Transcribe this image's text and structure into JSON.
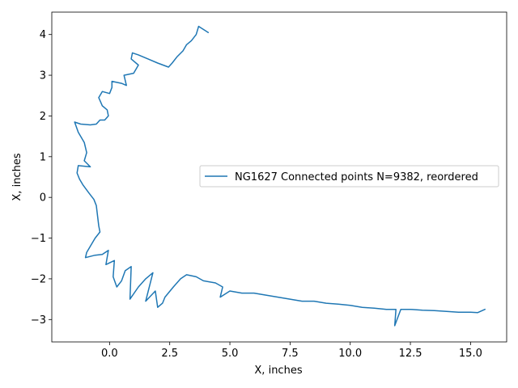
{
  "chart_data": {
    "type": "line",
    "title": "",
    "xlabel": "X, inches",
    "ylabel": "X, inches",
    "xlim": [
      -2.4,
      16.5
    ],
    "ylim": [
      -3.55,
      4.55
    ],
    "x_ticks": [
      0.0,
      2.5,
      5.0,
      7.5,
      10.0,
      12.5,
      15.0
    ],
    "x_tick_labels": [
      "0.0",
      "2.5",
      "5.0",
      "7.5",
      "10.0",
      "12.5",
      "15.0"
    ],
    "y_ticks": [
      -3,
      -2,
      -1,
      0,
      1,
      2,
      3,
      4
    ],
    "y_tick_labels": [
      "−3",
      "−2",
      "−1",
      "0",
      "1",
      "2",
      "3",
      "4"
    ],
    "grid": false,
    "legend_placement": "center-right",
    "series": [
      {
        "name": "NG1627 Connected points N=9382, reordered",
        "color": "#1f77b4",
        "points": [
          [
            4.1,
            4.05
          ],
          [
            3.7,
            4.2
          ],
          [
            3.6,
            4.0
          ],
          [
            3.4,
            3.85
          ],
          [
            3.2,
            3.75
          ],
          [
            3.05,
            3.6
          ],
          [
            2.8,
            3.45
          ],
          [
            2.6,
            3.3
          ],
          [
            2.45,
            3.2
          ],
          [
            2.0,
            3.3
          ],
          [
            1.6,
            3.4
          ],
          [
            1.2,
            3.5
          ],
          [
            0.95,
            3.55
          ],
          [
            0.9,
            3.4
          ],
          [
            1.2,
            3.25
          ],
          [
            1.0,
            3.05
          ],
          [
            0.6,
            3.0
          ],
          [
            0.7,
            2.75
          ],
          [
            0.5,
            2.8
          ],
          [
            0.1,
            2.85
          ],
          [
            0.1,
            2.7
          ],
          [
            0.0,
            2.55
          ],
          [
            -0.3,
            2.6
          ],
          [
            -0.45,
            2.45
          ],
          [
            -0.3,
            2.25
          ],
          [
            -0.1,
            2.15
          ],
          [
            -0.05,
            2.0
          ],
          [
            -0.2,
            1.9
          ],
          [
            -0.4,
            1.9
          ],
          [
            -0.55,
            1.8
          ],
          [
            -0.8,
            1.78
          ],
          [
            -1.2,
            1.8
          ],
          [
            -1.45,
            1.85
          ],
          [
            -1.3,
            1.6
          ],
          [
            -1.05,
            1.35
          ],
          [
            -0.95,
            1.1
          ],
          [
            -1.05,
            0.9
          ],
          [
            -0.8,
            0.75
          ],
          [
            -1.3,
            0.78
          ],
          [
            -1.35,
            0.6
          ],
          [
            -1.25,
            0.45
          ],
          [
            -1.1,
            0.3
          ],
          [
            -0.85,
            0.1
          ],
          [
            -0.65,
            -0.05
          ],
          [
            -0.55,
            -0.2
          ],
          [
            -0.5,
            -0.45
          ],
          [
            -0.45,
            -0.7
          ],
          [
            -0.4,
            -0.85
          ],
          [
            -0.6,
            -1.0
          ],
          [
            -0.8,
            -1.2
          ],
          [
            -0.95,
            -1.35
          ],
          [
            -1.0,
            -1.48
          ],
          [
            -0.6,
            -1.42
          ],
          [
            -0.3,
            -1.4
          ],
          [
            -0.05,
            -1.3
          ],
          [
            -0.15,
            -1.65
          ],
          [
            0.2,
            -1.55
          ],
          [
            0.15,
            -1.95
          ],
          [
            0.3,
            -2.2
          ],
          [
            0.5,
            -2.05
          ],
          [
            0.65,
            -1.8
          ],
          [
            0.9,
            -1.7
          ],
          [
            0.85,
            -2.5
          ],
          [
            1.2,
            -2.2
          ],
          [
            1.5,
            -2.0
          ],
          [
            1.8,
            -1.85
          ],
          [
            1.5,
            -2.55
          ],
          [
            1.9,
            -2.3
          ],
          [
            2.0,
            -2.7
          ],
          [
            2.2,
            -2.6
          ],
          [
            2.3,
            -2.45
          ],
          [
            2.65,
            -2.2
          ],
          [
            2.95,
            -2.0
          ],
          [
            3.2,
            -1.9
          ],
          [
            3.6,
            -1.95
          ],
          [
            3.9,
            -2.05
          ],
          [
            4.4,
            -2.1
          ],
          [
            4.7,
            -2.2
          ],
          [
            4.6,
            -2.45
          ],
          [
            5.0,
            -2.3
          ],
          [
            5.5,
            -2.35
          ],
          [
            6.0,
            -2.35
          ],
          [
            6.5,
            -2.4
          ],
          [
            7.0,
            -2.45
          ],
          [
            7.5,
            -2.5
          ],
          [
            8.0,
            -2.55
          ],
          [
            8.5,
            -2.55
          ],
          [
            9.0,
            -2.6
          ],
          [
            9.5,
            -2.62
          ],
          [
            10.0,
            -2.65
          ],
          [
            10.5,
            -2.7
          ],
          [
            11.0,
            -2.72
          ],
          [
            11.5,
            -2.75
          ],
          [
            11.9,
            -2.75
          ],
          [
            11.85,
            -3.15
          ],
          [
            12.1,
            -2.75
          ],
          [
            12.5,
            -2.75
          ],
          [
            13.0,
            -2.77
          ],
          [
            13.5,
            -2.78
          ],
          [
            14.0,
            -2.8
          ],
          [
            14.5,
            -2.82
          ],
          [
            15.0,
            -2.82
          ],
          [
            15.3,
            -2.83
          ],
          [
            15.6,
            -2.75
          ]
        ]
      }
    ]
  }
}
